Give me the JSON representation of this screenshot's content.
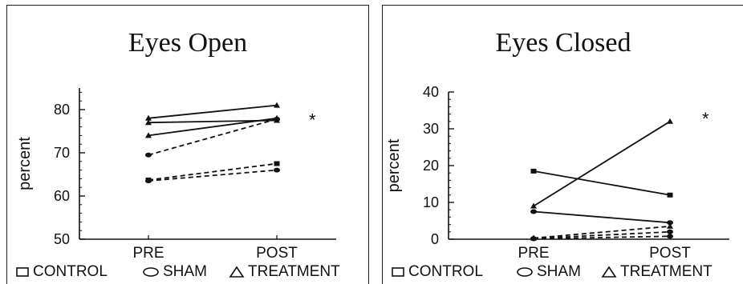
{
  "chart_data": [
    {
      "type": "line",
      "title": "Eyes Open",
      "ylabel": "percent",
      "categories": [
        "PRE",
        "POST"
      ],
      "y_ticks": [
        "50",
        "60",
        "70",
        "80"
      ],
      "ylim": [
        50,
        85
      ],
      "annotation": "*",
      "legend": [
        "CONTROL",
        "SHAM",
        "TREATMENT"
      ],
      "series": [
        {
          "group": "treatment",
          "values": [
            78,
            81
          ],
          "style": "solid"
        },
        {
          "group": "treatment",
          "values": [
            77,
            77.5
          ],
          "style": "solid"
        },
        {
          "group": "treatment",
          "values": [
            74,
            78
          ],
          "style": "solid"
        },
        {
          "group": "sham",
          "values": [
            69.5,
            77.8
          ],
          "style": "dashed"
        },
        {
          "group": "control",
          "values": [
            63.7,
            67.5
          ],
          "style": "dashed"
        },
        {
          "group": "sham",
          "values": [
            63.5,
            66
          ],
          "style": "dashed"
        }
      ]
    },
    {
      "type": "line",
      "title": "Eyes Closed",
      "ylabel": "percent",
      "categories": [
        "PRE",
        "POST"
      ],
      "y_ticks": [
        "0",
        "10",
        "20",
        "30",
        "40"
      ],
      "ylim": [
        0,
        40
      ],
      "annotation": "*",
      "legend": [
        "CONTROL",
        "SHAM",
        "TREATMENT"
      ],
      "series": [
        {
          "group": "treatment",
          "values": [
            9,
            32
          ],
          "style": "solid"
        },
        {
          "group": "control",
          "values": [
            18.5,
            12
          ],
          "style": "solid"
        },
        {
          "group": "sham",
          "values": [
            7.5,
            4.5
          ],
          "style": "solid"
        },
        {
          "group": "treatment",
          "values": [
            0.3,
            3.5
          ],
          "style": "dashed"
        },
        {
          "group": "sham",
          "values": [
            0.2,
            2
          ],
          "style": "dashed"
        },
        {
          "group": "sham",
          "values": [
            0.1,
            0.8
          ],
          "style": "dashed"
        }
      ]
    }
  ]
}
